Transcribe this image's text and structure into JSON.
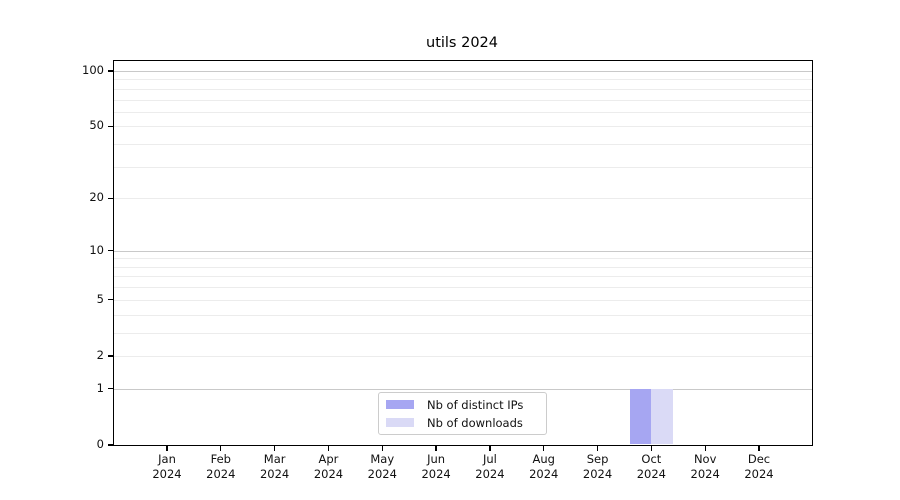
{
  "title": "utils 2024",
  "chart_data": {
    "type": "bar",
    "title": "utils 2024",
    "categories": [
      "Jan 2024",
      "Feb 2024",
      "Mar 2024",
      "Apr 2024",
      "May 2024",
      "Jun 2024",
      "Jul 2024",
      "Aug 2024",
      "Sep 2024",
      "Oct 2024",
      "Nov 2024",
      "Dec 2024"
    ],
    "series": [
      {
        "name": "Nb of distinct IPs",
        "color": "#a6a6f2",
        "values": [
          0,
          0,
          0,
          0,
          0,
          0,
          0,
          0,
          0,
          1,
          0,
          0
        ]
      },
      {
        "name": "Nb of downloads",
        "color": "#dadaf6",
        "values": [
          0,
          0,
          0,
          0,
          0,
          0,
          0,
          0,
          0,
          1,
          0,
          0
        ]
      }
    ],
    "xlabel": "",
    "ylabel": "",
    "yscale": "log1p",
    "ylim": [
      0,
      100
    ],
    "yticks": [
      0,
      1,
      2,
      5,
      10,
      20,
      50,
      100
    ],
    "minor_grid_values": [
      2,
      3,
      4,
      5,
      6,
      7,
      8,
      9,
      20,
      30,
      40,
      50,
      60,
      70,
      80,
      90
    ],
    "major_grid_values": [
      1,
      10,
      100
    ],
    "grid": true,
    "legend_position": "lower center"
  },
  "colors": {
    "major_grid": "#c9c9c9",
    "minor_grid": "#ececec",
    "axis": "#000000",
    "tick_label": "#111111",
    "background": "#ffffff",
    "legend_border": "#cccccc"
  }
}
